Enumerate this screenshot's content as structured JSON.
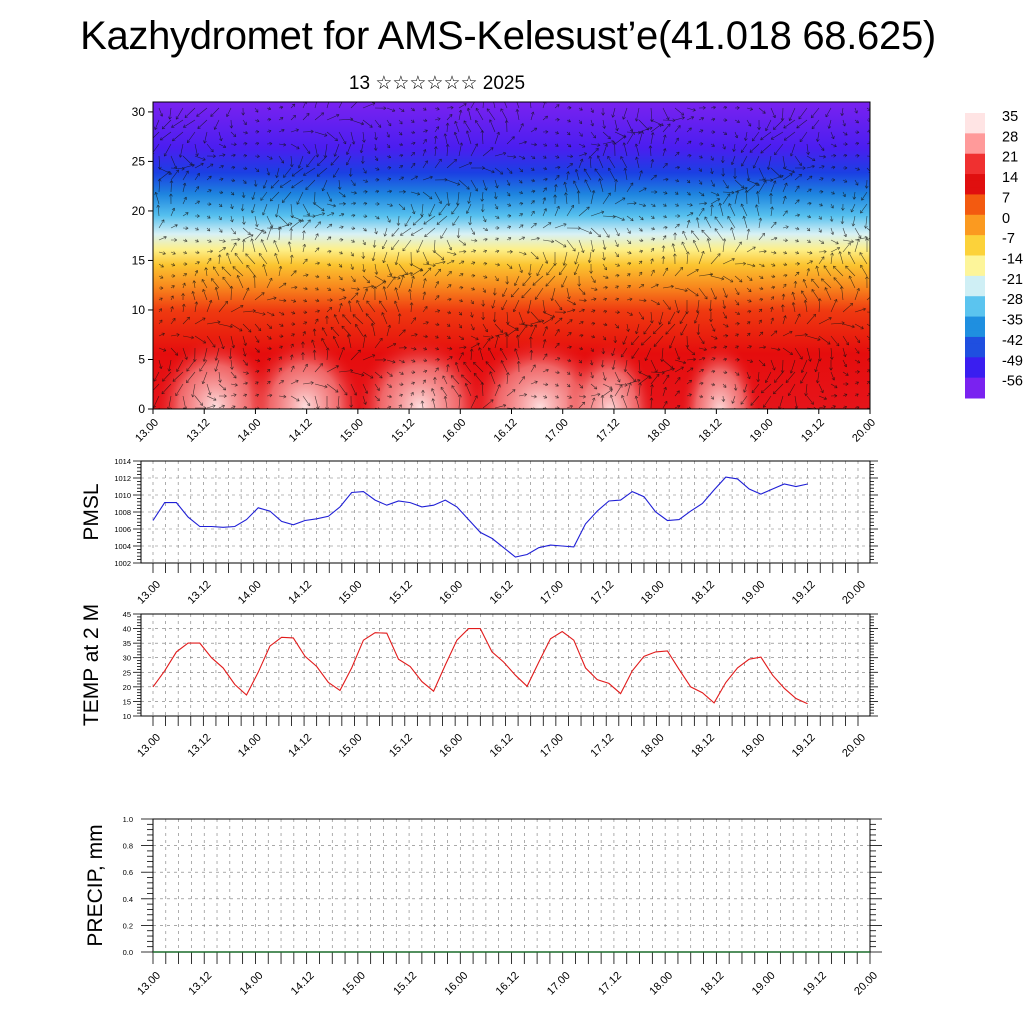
{
  "page": {
    "title": "Kazhydromet for AMS-Kelesust’e(41.018 68.625)",
    "subtitle": "13 ☆☆☆☆☆☆ 2025"
  },
  "colors": {
    "pmsl_line": "#1f1fd6",
    "temp_line": "#e11b1b",
    "precip_line": "#1a6b2a",
    "axis": "#000000"
  },
  "chart_data": [
    {
      "type": "heatmap",
      "name": "vertical-section",
      "xticks": [
        "13.00",
        "13.12",
        "14.00",
        "14.12",
        "15.00",
        "15.12",
        "16.00",
        "16.12",
        "17.00",
        "17.12",
        "18.00",
        "18.12",
        "19.00",
        "19.12",
        "20.00"
      ],
      "yticks": [
        "0",
        "5",
        "10",
        "15",
        "20",
        "25",
        "30"
      ],
      "ylim": [
        0,
        31
      ],
      "colorbar": {
        "labels": [
          "35",
          "28",
          "21",
          "14",
          "7",
          "0",
          "-7",
          "-14",
          "-21",
          "-28",
          "-35",
          "-42",
          "-49",
          "-56"
        ],
        "palette": [
          "#ffe4e4",
          "#ff9a9a",
          "#f03030",
          "#e00f0f",
          "#f35a10",
          "#fb9a20",
          "#fcd23a",
          "#fdf59a",
          "#cfeff5",
          "#5bc4ef",
          "#1f8fe0",
          "#1f4fe0",
          "#3a1ef0",
          "#7a22f0"
        ]
      }
    },
    {
      "type": "line",
      "name": "pmsl",
      "ylabel": "PMSL",
      "ylim": [
        1002,
        1014
      ],
      "yticks": [
        "1002",
        "1004",
        "1006",
        "1008",
        "1010",
        "1012",
        "1014"
      ],
      "xticks": [
        "13.00",
        "13.12",
        "14.00",
        "14.12",
        "15.00",
        "15.12",
        "16.00",
        "16.12",
        "17.00",
        "17.12",
        "18.00",
        "18.12",
        "19.00",
        "19.12",
        "20.00"
      ],
      "series": [
        {
          "values": [
            1007.0,
            1009.1,
            1009.1,
            1007.4,
            1006.3,
            1006.3,
            1006.2,
            1006.3,
            1007.1,
            1008.5,
            1008.1,
            1006.9,
            1006.5,
            1007.0,
            1007.2,
            1007.5,
            1008.6,
            1010.3,
            1010.4,
            1009.4,
            1008.8,
            1009.3,
            1009.1,
            1008.6,
            1008.8,
            1009.4,
            1008.6,
            1007.1,
            1005.6,
            1004.9,
            1003.8,
            1002.7,
            1003.0,
            1003.8,
            1004.1,
            1004.0,
            1003.9,
            1006.6,
            1008.1,
            1009.3,
            1009.4,
            1010.4,
            1009.8,
            1008.0,
            1007.0,
            1007.1,
            1008.1,
            1009.0,
            1010.6,
            1012.1,
            1011.9,
            1010.7,
            1010.1,
            1010.7,
            1011.3,
            1011.0,
            1011.3
          ]
        }
      ]
    },
    {
      "type": "line",
      "name": "temp",
      "ylabel": "TEMP at 2 M",
      "ylim": [
        10,
        45
      ],
      "yticks": [
        "10",
        "15",
        "20",
        "25",
        "30",
        "35",
        "40",
        "45"
      ],
      "xticks": [
        "13.00",
        "13.12",
        "14.00",
        "14.12",
        "15.00",
        "15.12",
        "16.00",
        "16.12",
        "17.00",
        "17.12",
        "18.00",
        "18.12",
        "19.00",
        "19.12",
        "20.00"
      ],
      "series": [
        {
          "values": [
            20.0,
            25.5,
            32.0,
            35.0,
            35.0,
            30.0,
            26.5,
            20.8,
            17.2,
            25.0,
            34.0,
            37.0,
            36.8,
            30.5,
            27.0,
            21.5,
            18.8,
            26.5,
            36.0,
            38.6,
            38.4,
            29.5,
            27.0,
            21.8,
            18.5,
            27.5,
            36.0,
            40.0,
            40.0,
            32.0,
            28.5,
            24.0,
            20.2,
            28.5,
            36.5,
            39.0,
            36.0,
            26.5,
            22.5,
            21.2,
            17.7,
            25.5,
            30.5,
            32.0,
            32.3,
            26.0,
            20.0,
            18.0,
            14.5,
            21.5,
            26.5,
            29.5,
            30.2,
            24.0,
            19.5,
            16.0,
            14.2
          ]
        }
      ]
    },
    {
      "type": "line",
      "name": "precip",
      "ylabel": "PRECIP, mm",
      "ylim": [
        0.0,
        1.0
      ],
      "yticks": [
        "0.0",
        "0.2",
        "0.4",
        "0.6",
        "0.8",
        "1.0"
      ],
      "xticks": [
        "13.00",
        "13.12",
        "14.00",
        "14.12",
        "15.00",
        "15.12",
        "16.00",
        "16.12",
        "17.00",
        "17.12",
        "18.00",
        "18.12",
        "19.00",
        "19.12",
        "20.00"
      ],
      "series": [
        {
          "values": [
            0,
            0,
            0,
            0,
            0,
            0,
            0,
            0,
            0,
            0,
            0,
            0,
            0,
            0,
            0,
            0,
            0,
            0,
            0,
            0,
            0,
            0,
            0,
            0,
            0,
            0,
            0,
            0,
            0,
            0,
            0,
            0,
            0,
            0,
            0,
            0,
            0,
            0,
            0,
            0,
            0,
            0,
            0,
            0,
            0,
            0,
            0,
            0,
            0,
            0,
            0,
            0,
            0,
            0,
            0,
            0,
            0
          ]
        }
      ]
    }
  ]
}
